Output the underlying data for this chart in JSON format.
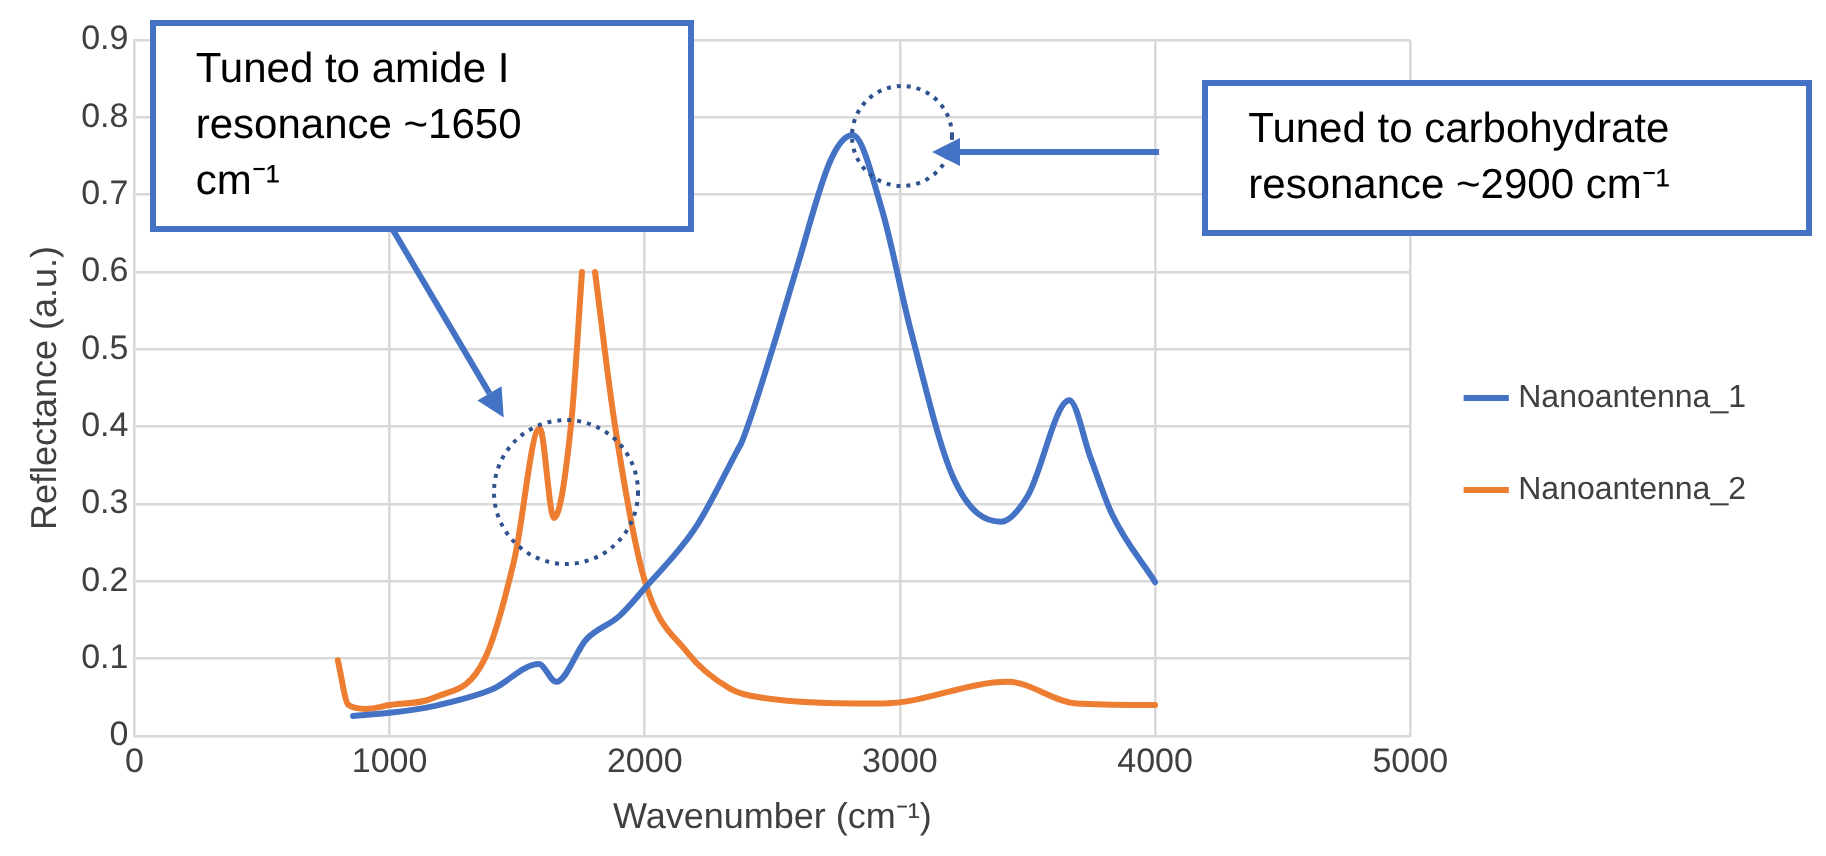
{
  "chart_data": {
    "type": "line",
    "xlabel": "Wavenumber (cm⁻¹)",
    "ylabel": "Reflectance (a.u.)",
    "xlim": [
      0,
      5000
    ],
    "xticks": [
      0,
      1000,
      2000,
      3000,
      4000,
      5000
    ],
    "ylim": [
      0,
      0.9
    ],
    "yticks": [
      0,
      0.1,
      0.2,
      0.3,
      0.4,
      0.5,
      0.6,
      0.7,
      0.8,
      0.9
    ],
    "grid": true,
    "legend": "right",
    "marker": "none",
    "line_style": "solid",
    "series": [
      {
        "name": "Nanoantenna_1",
        "color": "#4472c4",
        "x": [
          857,
          1000,
          1178,
          1400,
          1585,
          1653,
          1771,
          1900,
          1997,
          2200,
          2364,
          2380,
          2500,
          2600,
          2729,
          2814,
          2930,
          3042,
          3212,
          3396,
          3500,
          3664,
          3747,
          3831,
          4000
        ],
        "values": [
          0.026,
          0.03,
          0.039,
          0.06,
          0.093,
          0.07,
          0.125,
          0.155,
          0.19,
          0.27,
          0.37,
          0.38,
          0.5,
          0.61,
          0.745,
          0.777,
          0.68,
          0.525,
          0.332,
          0.277,
          0.31,
          0.434,
          0.36,
          0.287,
          0.199
        ]
      },
      {
        "name": "Nanoantenna_2",
        "color": "#ed7d31",
        "x": [
          797,
          839,
          907,
          1000,
          1178,
          1373,
          1490,
          1588,
          1644,
          1712,
          1754,
          1780,
          1805,
          1881,
          1997,
          2167,
          2336,
          2449,
          2930,
          3424,
          3692,
          4000
        ],
        "values": [
          0.098,
          0.04,
          0.035,
          0.04,
          0.05,
          0.1,
          0.23,
          0.398,
          0.282,
          0.406,
          0.6,
          null,
          0.6,
          0.406,
          0.204,
          0.108,
          0.061,
          0.05,
          0.042,
          0.07,
          0.042,
          0.04
        ]
      }
    ],
    "annotations": [
      "Tuned to amide I resonance ~1650 cm⁻¹",
      "Tuned to carbohydrate resonance ~2900 cm⁻¹"
    ]
  }
}
